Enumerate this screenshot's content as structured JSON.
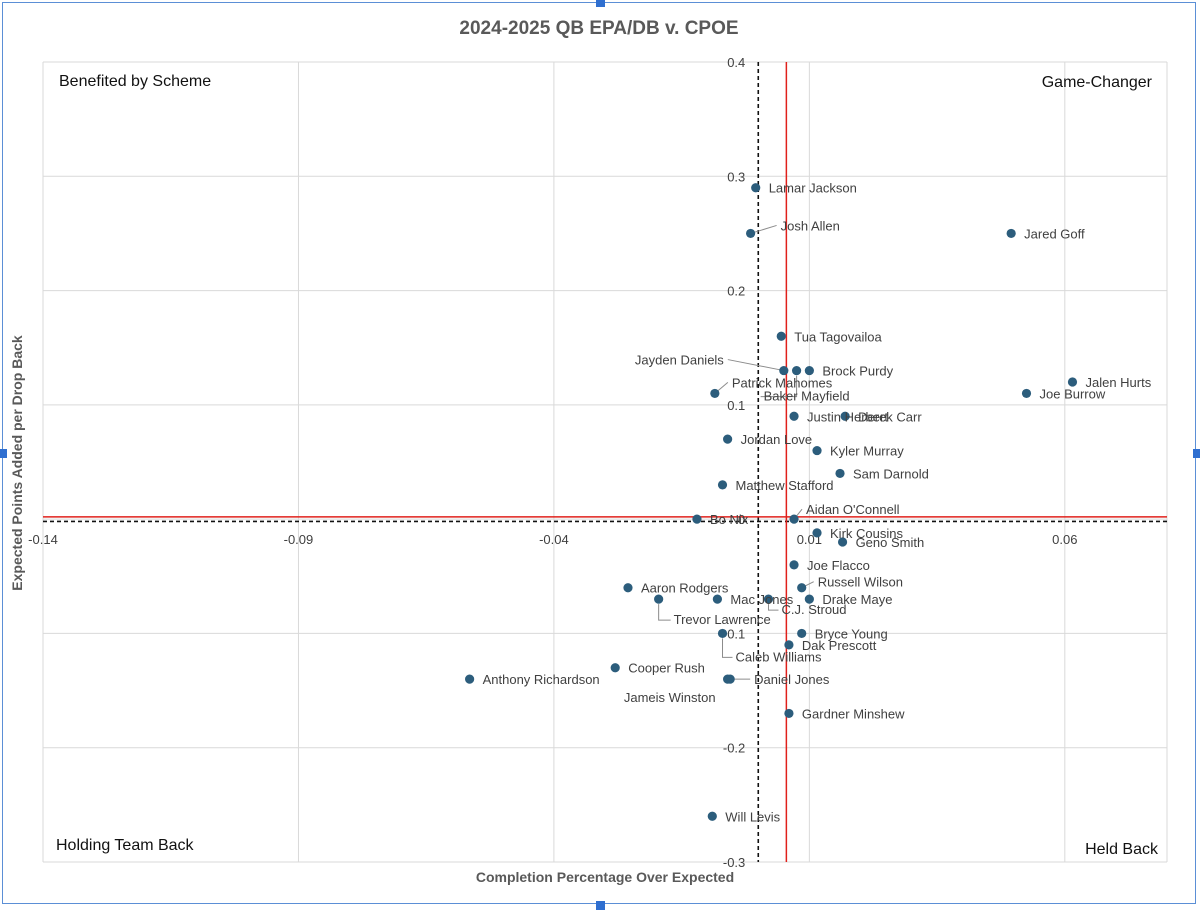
{
  "chart_data": {
    "type": "scatter",
    "title": "2024-2025 QB EPA/DB v. CPOE",
    "xlabel": "Completion Percentage Over Expected",
    "ylabel": "Expected Points Added per Drop Back",
    "xlim": [
      -0.14,
      0.08
    ],
    "ylim": [
      -0.3,
      0.4
    ],
    "x_ticks": [
      -0.14,
      -0.09,
      -0.04,
      0.01,
      0.06
    ],
    "x_tick_labels": [
      "-0.14",
      "-0.09",
      "-0.04",
      "0.01",
      "0.06"
    ],
    "y_ticks": [
      -0.3,
      -0.2,
      -0.1,
      0,
      0.1,
      0.2,
      0.3,
      0.4
    ],
    "y_tick_labels": [
      "-0.3",
      "-0.2",
      "-0.1",
      "0",
      "0.1",
      "0.2",
      "0.3",
      "0.4"
    ],
    "grid": true,
    "legend": "none",
    "marker_color": "#2c5d7c",
    "reference_lines": {
      "red_vertical_x": 0.0055,
      "red_horizontal_y": 0.002,
      "dashed_vertical_x": 0.0,
      "dashed_horizontal_y": -0.002,
      "red_color": "#e0201b",
      "dashed_color": "#111111"
    },
    "quadrant_labels": {
      "top_left": "Benefited by Scheme",
      "top_right": "Game-Changer",
      "bottom_left": "Holding Team Back",
      "bottom_right": "Held Back"
    },
    "points": [
      {
        "label": "Lamar Jackson",
        "x": -0.0005,
        "y": 0.29
      },
      {
        "label": "Josh Allen",
        "x": -0.0015,
        "y": 0.25
      },
      {
        "label": "Jared Goff",
        "x": 0.0495,
        "y": 0.25
      },
      {
        "label": "Tua Tagovailoa",
        "x": 0.0045,
        "y": 0.16
      },
      {
        "label": "Jayden Daniels",
        "x": 0.005,
        "y": 0.13
      },
      {
        "label": "Baker Mayfield",
        "x": 0.0075,
        "y": 0.13
      },
      {
        "label": "Brock Purdy",
        "x": 0.01,
        "y": 0.13
      },
      {
        "label": "Jalen Hurts",
        "x": 0.0615,
        "y": 0.12
      },
      {
        "label": "Joe Burrow",
        "x": 0.0525,
        "y": 0.11
      },
      {
        "label": "Patrick Mahomes",
        "x": -0.0085,
        "y": 0.11
      },
      {
        "label": "Justin Herbert",
        "x": 0.007,
        "y": 0.09
      },
      {
        "label": "Derek Carr",
        "x": 0.017,
        "y": 0.09
      },
      {
        "label": "Jordan Love",
        "x": -0.006,
        "y": 0.07
      },
      {
        "label": "Kyler Murray",
        "x": 0.0115,
        "y": 0.06
      },
      {
        "label": "Sam Darnold",
        "x": 0.016,
        "y": 0.04
      },
      {
        "label": "Matthew Stafford",
        "x": -0.007,
        "y": 0.03
      },
      {
        "label": "Aidan O'Connell",
        "x": 0.007,
        "y": 0.0
      },
      {
        "label": "Bo Nix",
        "x": -0.012,
        "y": 0.0
      },
      {
        "label": "Kirk Cousins",
        "x": 0.0115,
        "y": -0.012
      },
      {
        "label": "Geno Smith",
        "x": 0.0165,
        "y": -0.02
      },
      {
        "label": "Joe Flacco",
        "x": 0.007,
        "y": -0.04
      },
      {
        "label": "Russell Wilson",
        "x": 0.0085,
        "y": -0.06
      },
      {
        "label": "Drake Maye",
        "x": 0.01,
        "y": -0.07
      },
      {
        "label": "Aaron Rodgers",
        "x": -0.0255,
        "y": -0.06
      },
      {
        "label": "Trevor Lawrence",
        "x": -0.0195,
        "y": -0.07
      },
      {
        "label": "Mac Jones",
        "x": -0.008,
        "y": -0.07
      },
      {
        "label": "C.J. Stroud",
        "x": 0.002,
        "y": -0.07
      },
      {
        "label": "Caleb Williams",
        "x": -0.007,
        "y": -0.1
      },
      {
        "label": "Bryce Young",
        "x": 0.0085,
        "y": -0.1
      },
      {
        "label": "Dak Prescott",
        "x": 0.006,
        "y": -0.11
      },
      {
        "label": "Cooper Rush",
        "x": -0.028,
        "y": -0.13
      },
      {
        "label": "Anthony Richardson",
        "x": -0.0565,
        "y": -0.14
      },
      {
        "label": "Jameis Winston",
        "x": -0.006,
        "y": -0.14
      },
      {
        "label": "Daniel Jones",
        "x": -0.0055,
        "y": -0.14
      },
      {
        "label": "Gardner Minshew",
        "x": 0.006,
        "y": -0.17
      },
      {
        "label": "Will Levis",
        "x": -0.009,
        "y": -0.26
      }
    ]
  }
}
